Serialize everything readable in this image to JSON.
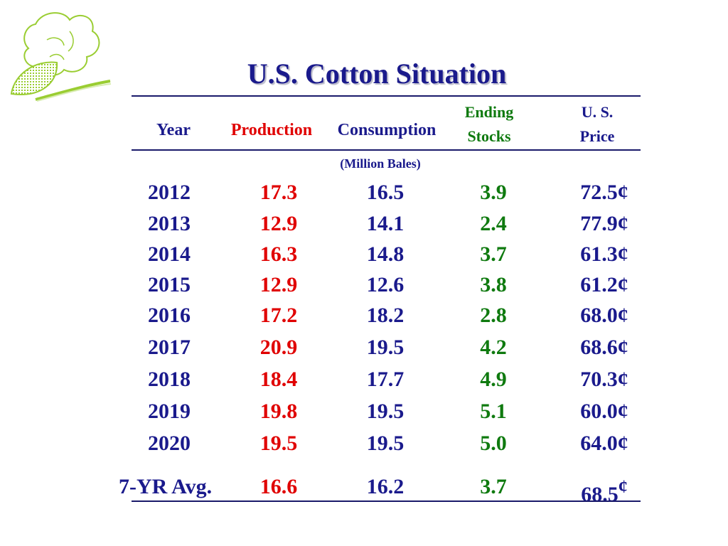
{
  "title": "U.S. Cotton Situation",
  "headers": {
    "year": "Year",
    "production": "Production",
    "consumption": "Consumption",
    "ending_stocks_line1": "Ending",
    "ending_stocks_line2": "Stocks",
    "price_line1": "U. S.",
    "price_line2": "Price"
  },
  "units_note": "(Million Bales)",
  "rows": [
    {
      "year": "2012",
      "production": "17.3",
      "consumption": "16.5",
      "ending_stocks": "3.9",
      "price": "72.5¢"
    },
    {
      "year": "2013",
      "production": "12.9",
      "consumption": "14.1",
      "ending_stocks": "2.4",
      "price": "77.9¢"
    },
    {
      "year": "2014",
      "production": "16.3",
      "consumption": "14.8",
      "ending_stocks": "3.7",
      "price": "61.3¢"
    },
    {
      "year": "2015",
      "production": "12.9",
      "consumption": "12.6",
      "ending_stocks": "3.8",
      "price": "61.2¢"
    },
    {
      "year": "2016",
      "production": "17.2",
      "consumption": "18.2",
      "ending_stocks": "2.8",
      "price": "68.0¢"
    },
    {
      "year": "2017",
      "production": "20.9",
      "consumption": "19.5",
      "ending_stocks": "4.2",
      "price": "68.6¢"
    },
    {
      "year": "2018",
      "production": "18.4",
      "consumption": "17.7",
      "ending_stocks": "4.9",
      "price": "70.3¢"
    },
    {
      "year": "2019",
      "production": "19.8",
      "consumption": "19.5",
      "ending_stocks": "5.1",
      "price": "60.0¢"
    },
    {
      "year": "2020",
      "production": "19.5",
      "consumption": "19.5",
      "ending_stocks": "5.0",
      "price": "64.0¢"
    }
  ],
  "average": {
    "label": "7-YR Avg.",
    "production": "16.6",
    "consumption": "16.2",
    "ending_stocks": "3.7",
    "price": "68.5",
    "price_symbol": "¢"
  },
  "colors": {
    "title": "#1a1a8c",
    "production": "#e00000",
    "consumption": "#1a1a8c",
    "ending_stocks": "#0f7a0f",
    "price": "#1a1a8c",
    "logo_green": "#9acd32"
  },
  "icons": {
    "logo": "cotton-boll-icon"
  }
}
